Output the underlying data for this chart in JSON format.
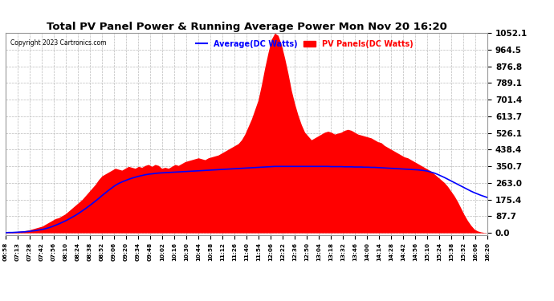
{
  "title": "Total PV Panel Power & Running Average Power Mon Nov 20 16:20",
  "copyright": "Copyright 2023 Cartronics.com",
  "legend_avg": "Average(DC Watts)",
  "legend_pv": "PV Panels(DC Watts)",
  "yticks": [
    0.0,
    87.7,
    175.4,
    263.0,
    350.7,
    438.4,
    526.1,
    613.7,
    701.4,
    789.1,
    876.8,
    964.5,
    1052.1
  ],
  "ymax": 1052.1,
  "bg_color": "#ffffff",
  "plot_bg_color": "#ffffff",
  "grid_color": "#bbbbbb",
  "pv_fill_color": "#ff0000",
  "avg_line_color": "#0000ff",
  "title_color": "#000000",
  "copyright_color": "#000000",
  "legend_avg_color": "#0000ff",
  "legend_pv_color": "#ff0000",
  "x_labels": [
    "06:58",
    "07:13",
    "07:28",
    "07:42",
    "07:56",
    "08:10",
    "08:24",
    "08:38",
    "08:52",
    "09:06",
    "09:20",
    "09:34",
    "09:48",
    "10:02",
    "10:16",
    "10:30",
    "10:44",
    "10:58",
    "11:12",
    "11:26",
    "11:40",
    "11:54",
    "12:06",
    "12:22",
    "12:36",
    "12:50",
    "13:04",
    "13:18",
    "13:32",
    "13:46",
    "14:00",
    "14:14",
    "14:28",
    "14:42",
    "14:56",
    "15:10",
    "15:24",
    "15:38",
    "15:52",
    "16:06",
    "16:20"
  ],
  "pv_values": [
    2,
    3,
    4,
    5,
    8,
    10,
    12,
    15,
    20,
    25,
    30,
    35,
    45,
    55,
    65,
    75,
    80,
    90,
    100,
    115,
    130,
    145,
    160,
    175,
    195,
    215,
    235,
    255,
    280,
    300,
    310,
    320,
    330,
    340,
    335,
    330,
    340,
    350,
    345,
    340,
    350,
    345,
    355,
    360,
    350,
    360,
    355,
    340,
    345,
    340,
    350,
    360,
    355,
    365,
    375,
    380,
    385,
    390,
    395,
    390,
    385,
    395,
    400,
    405,
    410,
    420,
    430,
    440,
    450,
    460,
    470,
    490,
    520,
    560,
    600,
    650,
    700,
    780,
    870,
    950,
    1020,
    1052,
    1040,
    990,
    920,
    840,
    750,
    680,
    620,
    570,
    530,
    510,
    490,
    500,
    510,
    520,
    530,
    535,
    530,
    520,
    525,
    530,
    540,
    545,
    540,
    530,
    520,
    515,
    510,
    505,
    500,
    490,
    480,
    475,
    460,
    450,
    440,
    430,
    420,
    410,
    400,
    395,
    385,
    375,
    365,
    355,
    345,
    335,
    325,
    310,
    295,
    280,
    265,
    245,
    220,
    195,
    165,
    130,
    95,
    65,
    40,
    20,
    10,
    5,
    2,
    0
  ],
  "avg_values": [
    1,
    2,
    2,
    3,
    4,
    5,
    6,
    8,
    10,
    12,
    15,
    18,
    22,
    27,
    33,
    40,
    47,
    55,
    63,
    72,
    82,
    92,
    103,
    115,
    127,
    140,
    153,
    167,
    181,
    196,
    210,
    224,
    237,
    250,
    260,
    268,
    275,
    282,
    288,
    293,
    298,
    302,
    306,
    309,
    311,
    313,
    315,
    316,
    317,
    318,
    319,
    320,
    321,
    322,
    323,
    324,
    325,
    326,
    327,
    328,
    329,
    330,
    331,
    332,
    333,
    334,
    335,
    336,
    337,
    338,
    339,
    340,
    341,
    342,
    343,
    344,
    345,
    346,
    347,
    348,
    349,
    350,
    350,
    350,
    350,
    350,
    350,
    350,
    350,
    350,
    350,
    350,
    350,
    350,
    350,
    350,
    350,
    350,
    349,
    349,
    349,
    349,
    348,
    348,
    348,
    347,
    347,
    347,
    346,
    346,
    345,
    345,
    344,
    343,
    342,
    341,
    340,
    339,
    338,
    337,
    336,
    335,
    334,
    333,
    332,
    330,
    328,
    325,
    320,
    315,
    308,
    300,
    292,
    283,
    274,
    265,
    256,
    247,
    238,
    229,
    220,
    212,
    205,
    198,
    192,
    186
  ],
  "num_xtick_labels": 41,
  "right_margin_labels": true
}
